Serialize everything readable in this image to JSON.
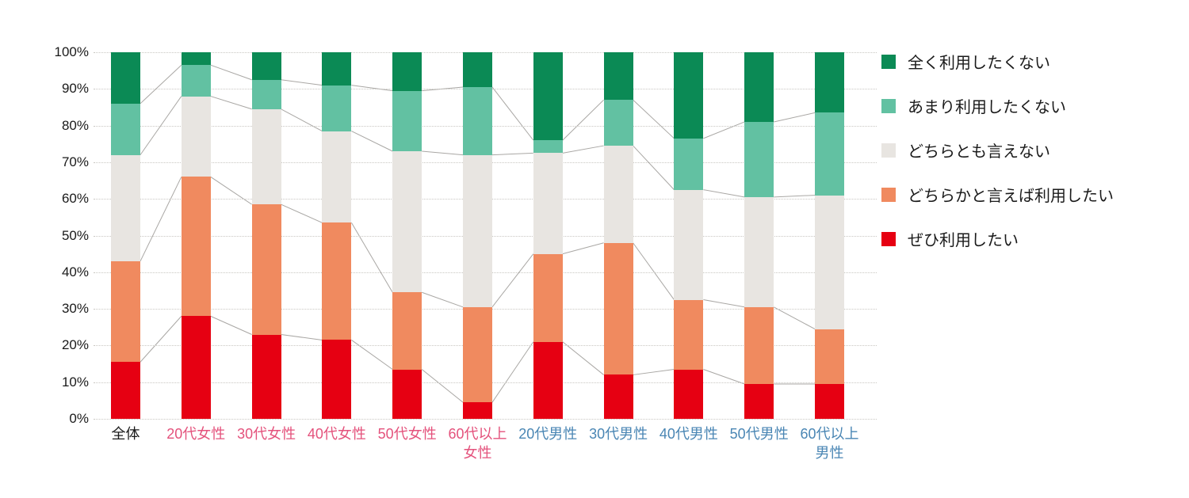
{
  "chart_data": {
    "type": "bar",
    "variant": "100-percent-stacked-column",
    "title": "",
    "xlabel": "",
    "ylabel": "",
    "grid": "dotted-horizontal",
    "connector_lines": true,
    "connector_color": "#a9a7a4",
    "y_axis": {
      "min": 0,
      "max": 100,
      "step": 10,
      "tick_suffix": "%"
    },
    "legend": {
      "position": "right",
      "order": "top-to-bottom-reversed-stack"
    },
    "categories": [
      {
        "label": "全体",
        "color": "#1a1a1a"
      },
      {
        "label": "20代女性",
        "color": "#e4527c"
      },
      {
        "label": "30代女性",
        "color": "#e4527c"
      },
      {
        "label": "40代女性",
        "color": "#e4527c"
      },
      {
        "label": "50代女性",
        "color": "#e4527c"
      },
      {
        "label": "60代以上\n女性",
        "color": "#e4527c"
      },
      {
        "label": "20代男性",
        "color": "#4a86b4"
      },
      {
        "label": "30代男性",
        "color": "#4a86b4"
      },
      {
        "label": "40代男性",
        "color": "#4a86b4"
      },
      {
        "label": "50代男性",
        "color": "#4a86b4"
      },
      {
        "label": "60代以上\n男性",
        "color": "#4a86b4"
      }
    ],
    "series": [
      {
        "name": "ぜひ利用したい",
        "color": "#e60012",
        "values": [
          15.5,
          28.0,
          23.0,
          21.5,
          13.5,
          4.5,
          21.0,
          12.0,
          13.5,
          9.5,
          9.5
        ]
      },
      {
        "name": "どちらかと言えば利用したい",
        "color": "#f08a5f",
        "values": [
          27.5,
          38.0,
          35.5,
          32.0,
          21.0,
          26.0,
          24.0,
          36.0,
          19.0,
          21.0,
          15.0
        ]
      },
      {
        "name": "どちらとも言えない",
        "color": "#e8e5e1",
        "values": [
          29.0,
          22.0,
          26.0,
          25.0,
          38.5,
          41.5,
          27.5,
          26.5,
          30.0,
          30.0,
          36.5
        ]
      },
      {
        "name": "あまり利用したくない",
        "color": "#62c1a2",
        "values": [
          14.0,
          8.5,
          8.0,
          12.5,
          16.5,
          18.5,
          3.5,
          12.5,
          14.0,
          20.5,
          22.5
        ]
      },
      {
        "name": "全く利用したくない",
        "color": "#0b8a55",
        "values": [
          14.0,
          3.5,
          7.5,
          9.0,
          10.5,
          9.5,
          24.0,
          13.0,
          23.5,
          19.0,
          16.5
        ]
      }
    ]
  }
}
